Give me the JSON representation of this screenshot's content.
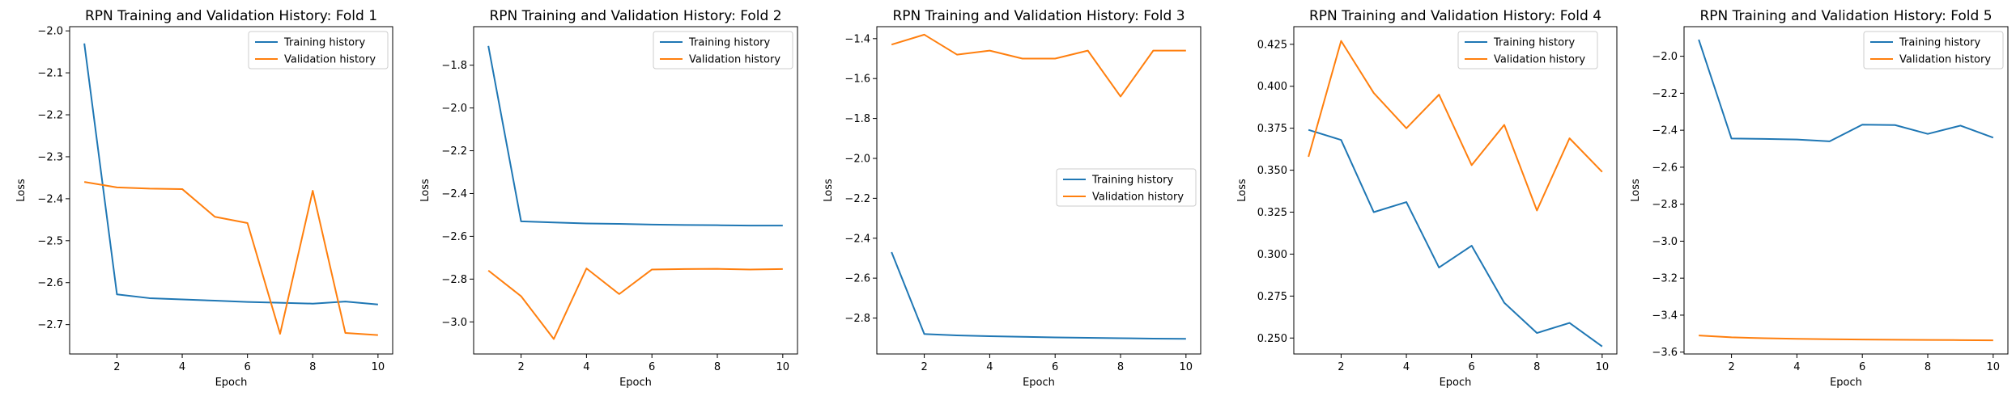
{
  "colors": {
    "training": "#1f77b4",
    "validation": "#ff7f0e"
  },
  "chart_data": [
    {
      "type": "line",
      "title": "RPN Training and Validation History: Fold 1",
      "xlabel": "Epoch",
      "ylabel": "Loss",
      "xlim": [
        0.55,
        10.45
      ],
      "ylim": [
        -2.77,
        -1.99
      ],
      "xticks": [
        2,
        4,
        6,
        8,
        10
      ],
      "yticks": [
        -2.0,
        -2.1,
        -2.2,
        -2.3,
        -2.4,
        -2.5,
        -2.6,
        -2.7
      ],
      "ytick_labels": [
        "−2.0",
        "−2.1",
        "−2.2",
        "−2.3",
        "−2.4",
        "−2.5",
        "−2.6",
        "−2.7"
      ],
      "legend": "upper right",
      "x": [
        1,
        2,
        3,
        4,
        5,
        6,
        7,
        8,
        9,
        10
      ],
      "series": [
        {
          "name": "Training history",
          "values": [
            -2.03,
            -2.628,
            -2.637,
            -2.64,
            -2.643,
            -2.646,
            -2.648,
            -2.65,
            -2.645,
            -2.652
          ]
        },
        {
          "name": "Validation history",
          "values": [
            -2.36,
            -2.373,
            -2.376,
            -2.377,
            -2.443,
            -2.458,
            -2.722,
            -2.381,
            -2.72,
            -2.725
          ]
        }
      ]
    },
    {
      "type": "line",
      "title": "RPN Training and Validation History: Fold 2",
      "xlabel": "Epoch",
      "ylabel": "Loss",
      "xlim": [
        0.55,
        10.45
      ],
      "ylim": [
        -3.15,
        -1.62
      ],
      "xticks": [
        2,
        4,
        6,
        8,
        10
      ],
      "yticks": [
        -1.8,
        -2.0,
        -2.2,
        -2.4,
        -2.6,
        -2.8,
        -3.0
      ],
      "ytick_labels": [
        "−1.8",
        "−2.0",
        "−2.2",
        "−2.4",
        "−2.6",
        "−2.8",
        "−3.0"
      ],
      "legend": "upper right",
      "x": [
        1,
        2,
        3,
        4,
        5,
        6,
        7,
        8,
        9,
        10
      ],
      "series": [
        {
          "name": "Training history",
          "values": [
            -1.71,
            -2.53,
            -2.535,
            -2.54,
            -2.542,
            -2.545,
            -2.547,
            -2.548,
            -2.55,
            -2.55
          ]
        },
        {
          "name": "Validation history",
          "values": [
            -2.76,
            -2.88,
            -3.08,
            -2.75,
            -2.87,
            -2.755,
            -2.753,
            -2.752,
            -2.755,
            -2.753
          ]
        }
      ]
    },
    {
      "type": "line",
      "title": "RPN Training and Validation History: Fold 3",
      "xlabel": "Epoch",
      "ylabel": "Loss",
      "xlim": [
        0.55,
        10.45
      ],
      "ylim": [
        -2.98,
        -1.34
      ],
      "xticks": [
        2,
        4,
        6,
        8,
        10
      ],
      "yticks": [
        -1.4,
        -1.6,
        -1.8,
        -2.0,
        -2.2,
        -2.4,
        -2.6,
        -2.8
      ],
      "ytick_labels": [
        "−1.4",
        "−1.6",
        "−1.8",
        "−2.0",
        "−2.2",
        "−2.4",
        "−2.6",
        "−2.8"
      ],
      "legend": "center right",
      "x": [
        1,
        2,
        3,
        4,
        5,
        6,
        7,
        8,
        9,
        10
      ],
      "series": [
        {
          "name": "Training history",
          "values": [
            -2.47,
            -2.88,
            -2.887,
            -2.891,
            -2.894,
            -2.897,
            -2.899,
            -2.901,
            -2.903,
            -2.904
          ]
        },
        {
          "name": "Validation history",
          "values": [
            -1.43,
            -1.38,
            -1.48,
            -1.46,
            -1.5,
            -1.5,
            -1.46,
            -1.69,
            -1.46,
            -1.46
          ]
        }
      ]
    },
    {
      "type": "line",
      "title": "RPN Training and Validation History: Fold 4",
      "xlabel": "Epoch",
      "ylabel": "Loss",
      "xlim": [
        0.55,
        10.45
      ],
      "ylim": [
        0.2405,
        0.4355
      ],
      "xticks": [
        2,
        4,
        6,
        8,
        10
      ],
      "yticks": [
        0.25,
        0.275,
        0.3,
        0.325,
        0.35,
        0.375,
        0.4,
        0.425
      ],
      "ytick_labels": [
        "0.250",
        "0.275",
        "0.300",
        "0.325",
        "0.350",
        "0.375",
        "0.400",
        "0.425"
      ],
      "legend": "upper right",
      "x": [
        1,
        2,
        3,
        4,
        5,
        6,
        7,
        8,
        9,
        10
      ],
      "series": [
        {
          "name": "Training history",
          "values": [
            0.374,
            0.368,
            0.325,
            0.331,
            0.292,
            0.305,
            0.271,
            0.253,
            0.259,
            0.245
          ]
        },
        {
          "name": "Validation history",
          "values": [
            0.358,
            0.427,
            0.396,
            0.375,
            0.395,
            0.353,
            0.377,
            0.326,
            0.369,
            0.349
          ]
        }
      ]
    },
    {
      "type": "line",
      "title": "RPN Training and Validation History: Fold 5",
      "xlabel": "Epoch",
      "ylabel": "Loss",
      "xlim": [
        0.55,
        10.45
      ],
      "ylim": [
        -3.61,
        -1.84
      ],
      "xticks": [
        2,
        4,
        6,
        8,
        10
      ],
      "yticks": [
        -2.0,
        -2.2,
        -2.4,
        -2.6,
        -2.8,
        -3.0,
        -3.2,
        -3.4,
        -3.6
      ],
      "ytick_labels": [
        "−2.0",
        "−2.2",
        "−2.4",
        "−2.6",
        "−2.8",
        "−3.0",
        "−3.2",
        "−3.4",
        "−3.6"
      ],
      "legend": "upper right",
      "x": [
        1,
        2,
        3,
        4,
        5,
        6,
        7,
        8,
        9,
        10
      ],
      "series": [
        {
          "name": "Training history",
          "values": [
            -1.91,
            -2.445,
            -2.447,
            -2.45,
            -2.46,
            -2.37,
            -2.372,
            -2.42,
            -2.375,
            -2.44
          ]
        },
        {
          "name": "Validation history",
          "values": [
            -3.51,
            -3.52,
            -3.525,
            -3.528,
            -3.53,
            -3.532,
            -3.533,
            -3.534,
            -3.535,
            -3.536
          ]
        }
      ]
    }
  ]
}
